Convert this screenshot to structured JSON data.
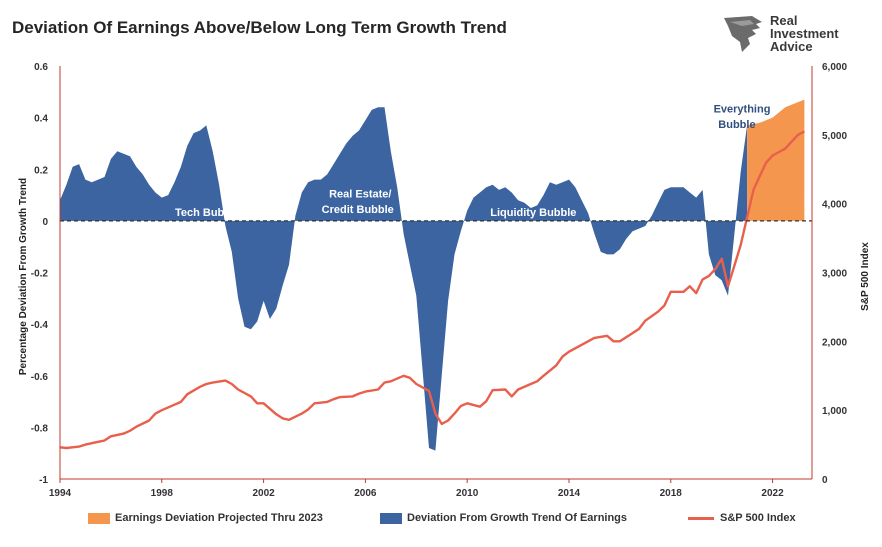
{
  "title": "Deviation Of Earnings Above/Below Long Term Growth Trend",
  "logo": {
    "line1": "Real",
    "line2": "Investment",
    "line3": "Advice"
  },
  "colors": {
    "deviation": "#3b64a0",
    "projected": "#f5964f",
    "sp500": "#e8604c",
    "zero_line": "#555555"
  },
  "chart_data": {
    "type": "area",
    "title": "Deviation Of Earnings Above/Below Long Term Growth Trend",
    "ylabel_left": "Percentage Deviation From Growth Trend",
    "ylabel_right": "S&P 500 Index",
    "xlim": [
      1994,
      2023
    ],
    "ylim_left": [
      -1,
      0.6
    ],
    "ylim_right": [
      0,
      6000
    ],
    "x_ticks": [
      "1994",
      "1998",
      "2002",
      "2006",
      "2010",
      "2014",
      "2018",
      "2022"
    ],
    "y_left_ticks": [
      "0.6",
      "0.4",
      "0.2",
      "0",
      "-0.2",
      "-0.4",
      "-0.6",
      "-0.8",
      "-1"
    ],
    "y_right_ticks": [
      "6,000",
      "5,000",
      "4,000",
      "3,000",
      "2,000",
      "1,000",
      "0"
    ],
    "grid": false,
    "legend_position": "bottom",
    "series": [
      {
        "name": "Deviation From Growth Trend Of Earnings",
        "axis": "left",
        "points": [
          [
            1994.0,
            0.08
          ],
          [
            1994.25,
            0.14
          ],
          [
            1994.5,
            0.21
          ],
          [
            1994.75,
            0.22
          ],
          [
            1995.0,
            0.16
          ],
          [
            1995.25,
            0.15
          ],
          [
            1995.5,
            0.16
          ],
          [
            1995.75,
            0.17
          ],
          [
            1996.0,
            0.24
          ],
          [
            1996.25,
            0.27
          ],
          [
            1996.5,
            0.26
          ],
          [
            1996.75,
            0.25
          ],
          [
            1997.0,
            0.21
          ],
          [
            1997.25,
            0.18
          ],
          [
            1997.5,
            0.14
          ],
          [
            1997.75,
            0.11
          ],
          [
            1998.0,
            0.09
          ],
          [
            1998.25,
            0.1
          ],
          [
            1998.5,
            0.15
          ],
          [
            1998.75,
            0.21
          ],
          [
            1999.0,
            0.29
          ],
          [
            1999.25,
            0.34
          ],
          [
            1999.5,
            0.35
          ],
          [
            1999.75,
            0.37
          ],
          [
            2000.0,
            0.27
          ],
          [
            2000.25,
            0.14
          ],
          [
            2000.5,
            -0.02
          ],
          [
            2000.75,
            -0.12
          ],
          [
            2001.0,
            -0.3
          ],
          [
            2001.25,
            -0.41
          ],
          [
            2001.5,
            -0.42
          ],
          [
            2001.75,
            -0.39
          ],
          [
            2002.0,
            -0.31
          ],
          [
            2002.25,
            -0.38
          ],
          [
            2002.5,
            -0.34
          ],
          [
            2002.75,
            -0.25
          ],
          [
            2003.0,
            -0.17
          ],
          [
            2003.25,
            0.02
          ],
          [
            2003.5,
            0.11
          ],
          [
            2003.75,
            0.15
          ],
          [
            2004.0,
            0.16
          ],
          [
            2004.25,
            0.16
          ],
          [
            2004.5,
            0.18
          ],
          [
            2004.75,
            0.22
          ],
          [
            2005.0,
            0.26
          ],
          [
            2005.25,
            0.3
          ],
          [
            2005.5,
            0.33
          ],
          [
            2005.75,
            0.35
          ],
          [
            2006.0,
            0.39
          ],
          [
            2006.25,
            0.43
          ],
          [
            2006.5,
            0.44
          ],
          [
            2006.75,
            0.44
          ],
          [
            2007.0,
            0.27
          ],
          [
            2007.25,
            0.13
          ],
          [
            2007.5,
            -0.05
          ],
          [
            2007.75,
            -0.17
          ],
          [
            2008.0,
            -0.29
          ],
          [
            2008.25,
            -0.58
          ],
          [
            2008.5,
            -0.88
          ],
          [
            2008.75,
            -0.89
          ],
          [
            2009.0,
            -0.6
          ],
          [
            2009.25,
            -0.31
          ],
          [
            2009.5,
            -0.13
          ],
          [
            2009.75,
            -0.04
          ],
          [
            2010.0,
            0.04
          ],
          [
            2010.25,
            0.09
          ],
          [
            2010.5,
            0.11
          ],
          [
            2010.75,
            0.13
          ],
          [
            2011.0,
            0.14
          ],
          [
            2011.25,
            0.12
          ],
          [
            2011.5,
            0.13
          ],
          [
            2011.75,
            0.11
          ],
          [
            2012.0,
            0.08
          ],
          [
            2012.25,
            0.07
          ],
          [
            2012.5,
            0.05
          ],
          [
            2012.75,
            0.06
          ],
          [
            2013.0,
            0.1
          ],
          [
            2013.25,
            0.15
          ],
          [
            2013.5,
            0.14
          ],
          [
            2013.75,
            0.15
          ],
          [
            2014.0,
            0.16
          ],
          [
            2014.25,
            0.13
          ],
          [
            2014.5,
            0.08
          ],
          [
            2014.75,
            0.03
          ],
          [
            2015.0,
            -0.05
          ],
          [
            2015.25,
            -0.12
          ],
          [
            2015.5,
            -0.13
          ],
          [
            2015.75,
            -0.13
          ],
          [
            2016.0,
            -0.11
          ],
          [
            2016.25,
            -0.07
          ],
          [
            2016.5,
            -0.04
          ],
          [
            2016.75,
            -0.03
          ],
          [
            2017.0,
            -0.02
          ],
          [
            2017.25,
            0.02
          ],
          [
            2017.5,
            0.07
          ],
          [
            2017.75,
            0.12
          ],
          [
            2018.0,
            0.13
          ],
          [
            2018.25,
            0.13
          ],
          [
            2018.5,
            0.13
          ],
          [
            2018.75,
            0.11
          ],
          [
            2019.0,
            0.09
          ],
          [
            2019.25,
            0.12
          ],
          [
            2019.5,
            -0.13
          ],
          [
            2019.75,
            -0.21
          ],
          [
            2020.0,
            -0.23
          ],
          [
            2020.25,
            -0.29
          ],
          [
            2020.5,
            -0.05
          ],
          [
            2020.75,
            0.19
          ],
          [
            2021.0,
            0.37
          ]
        ]
      },
      {
        "name": "Earnings Deviation Projected Thru 2023",
        "axis": "left",
        "points": [
          [
            2021.0,
            0.37
          ],
          [
            2021.5,
            0.38
          ],
          [
            2022.0,
            0.4
          ],
          [
            2022.5,
            0.44
          ],
          [
            2023.0,
            0.46
          ],
          [
            2023.25,
            0.47
          ]
        ]
      },
      {
        "name": "S&P 500 Index",
        "axis": "right",
        "points": [
          [
            1994.0,
            460
          ],
          [
            1994.25,
            450
          ],
          [
            1994.5,
            460
          ],
          [
            1994.75,
            470
          ],
          [
            1995.0,
            500
          ],
          [
            1995.5,
            540
          ],
          [
            1995.75,
            560
          ],
          [
            1996.0,
            620
          ],
          [
            1996.5,
            660
          ],
          [
            1996.75,
            700
          ],
          [
            1997.0,
            760
          ],
          [
            1997.5,
            850
          ],
          [
            1997.75,
            950
          ],
          [
            1998.0,
            1000
          ],
          [
            1998.5,
            1080
          ],
          [
            1998.75,
            1120
          ],
          [
            1999.0,
            1230
          ],
          [
            1999.5,
            1340
          ],
          [
            1999.75,
            1380
          ],
          [
            2000.0,
            1400
          ],
          [
            2000.5,
            1430
          ],
          [
            2000.75,
            1380
          ],
          [
            2001.0,
            1300
          ],
          [
            2001.5,
            1200
          ],
          [
            2001.75,
            1100
          ],
          [
            2002.0,
            1100
          ],
          [
            2002.5,
            940
          ],
          [
            2002.75,
            880
          ],
          [
            2003.0,
            860
          ],
          [
            2003.5,
            950
          ],
          [
            2003.75,
            1010
          ],
          [
            2004.0,
            1100
          ],
          [
            2004.5,
            1120
          ],
          [
            2004.75,
            1160
          ],
          [
            2005.0,
            1190
          ],
          [
            2005.5,
            1200
          ],
          [
            2005.75,
            1240
          ],
          [
            2006.0,
            1270
          ],
          [
            2006.5,
            1300
          ],
          [
            2006.75,
            1400
          ],
          [
            2007.0,
            1420
          ],
          [
            2007.5,
            1500
          ],
          [
            2007.75,
            1470
          ],
          [
            2008.0,
            1380
          ],
          [
            2008.5,
            1280
          ],
          [
            2008.75,
            950
          ],
          [
            2009.0,
            800
          ],
          [
            2009.25,
            850
          ],
          [
            2009.5,
            950
          ],
          [
            2009.75,
            1060
          ],
          [
            2010.0,
            1100
          ],
          [
            2010.5,
            1050
          ],
          [
            2010.75,
            1130
          ],
          [
            2011.0,
            1290
          ],
          [
            2011.5,
            1300
          ],
          [
            2011.75,
            1200
          ],
          [
            2012.0,
            1300
          ],
          [
            2012.5,
            1380
          ],
          [
            2012.75,
            1420
          ],
          [
            2013.0,
            1500
          ],
          [
            2013.5,
            1650
          ],
          [
            2013.75,
            1780
          ],
          [
            2014.0,
            1850
          ],
          [
            2014.5,
            1950
          ],
          [
            2014.75,
            2000
          ],
          [
            2015.0,
            2050
          ],
          [
            2015.5,
            2080
          ],
          [
            2015.75,
            2000
          ],
          [
            2016.0,
            2000
          ],
          [
            2016.5,
            2120
          ],
          [
            2016.75,
            2180
          ],
          [
            2017.0,
            2300
          ],
          [
            2017.5,
            2430
          ],
          [
            2017.75,
            2520
          ],
          [
            2018.0,
            2720
          ],
          [
            2018.5,
            2720
          ],
          [
            2018.75,
            2800
          ],
          [
            2019.0,
            2700
          ],
          [
            2019.25,
            2900
          ],
          [
            2019.5,
            2950
          ],
          [
            2019.75,
            3050
          ],
          [
            2020.0,
            3200
          ],
          [
            2020.25,
            2800
          ],
          [
            2020.5,
            3100
          ],
          [
            2020.75,
            3400
          ],
          [
            2021.0,
            3800
          ],
          [
            2021.25,
            4200
          ],
          [
            2021.5,
            4400
          ],
          [
            2021.75,
            4600
          ],
          [
            2022.0,
            4700
          ],
          [
            2022.5,
            4800
          ],
          [
            2022.75,
            4900
          ],
          [
            2023.0,
            5000
          ],
          [
            2023.25,
            5050
          ]
        ]
      }
    ],
    "annotations": [
      "Tech Bubble",
      "Real Estate/",
      "Credit Bubble",
      "Liquidity Bubble",
      "Everything",
      "Bubble"
    ]
  },
  "legend": [
    {
      "label": "Earnings Deviation Projected Thru 2023"
    },
    {
      "label": "Deviation From Growth Trend Of Earnings"
    },
    {
      "label": "S&P 500 Index"
    }
  ]
}
